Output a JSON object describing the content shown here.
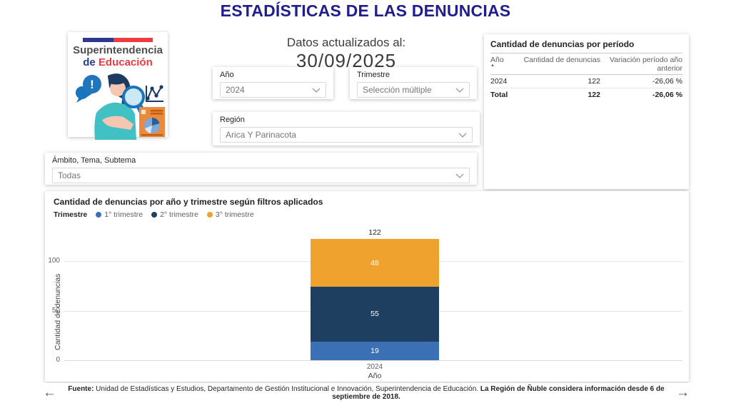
{
  "page": {
    "title": "ESTADÍSTICAS DE LAS DENUNCIAS"
  },
  "logo": {
    "line1": "Superintendencia",
    "line2_de": "de ",
    "line2_edu": "Educación"
  },
  "updated": {
    "label": "Datos actualizados al:",
    "date": "30/09/2025"
  },
  "filters": {
    "ano": {
      "label": "Año",
      "value": "2024"
    },
    "trimestre": {
      "label": "Trimestre",
      "value": "Selección múltiple"
    },
    "region": {
      "label": "Región",
      "value": "Arica Y Parinacota"
    },
    "ambito": {
      "label": "Ámbito, Tema, Subtema",
      "value": "Todas"
    }
  },
  "period_table": {
    "title": "Cantidad de denuncias por período",
    "columns": [
      "Año",
      "Cantidad de denuncias",
      "Variación período año anterior"
    ],
    "sort_indicator": "▲",
    "rows": [
      {
        "ano": "2024",
        "cantidad": "122",
        "variacion": "-26,06 %"
      }
    ],
    "total": {
      "label": "Total",
      "cantidad": "122",
      "variacion": "-26,06 %"
    }
  },
  "chart_data": {
    "type": "bar",
    "stacked": true,
    "title": "Cantidad de denuncias por año y trimestre según filtros aplicados",
    "legend_title": "Trimestre",
    "legend_position": "top",
    "grid": true,
    "categories": [
      "2024"
    ],
    "series": [
      {
        "name": "1° trimestre",
        "color": "#3b70b5",
        "values": [
          19
        ]
      },
      {
        "name": "2° trimestre",
        "color": "#1e3f60",
        "values": [
          55
        ]
      },
      {
        "name": "3° trimestre",
        "color": "#f0a22e",
        "values": [
          48
        ]
      }
    ],
    "totals": [
      122
    ],
    "xlabel": "Año",
    "ylabel": "Cantidad de denuncias",
    "ylim": [
      0,
      100
    ],
    "yticks": [
      0,
      50,
      100
    ]
  },
  "footer": {
    "fuente_label": "Fuente:",
    "text": " Unidad de Estadísticas y Estudios, Departamento de Gestión Institucional e Innovación, Superintendencia de Educación. ",
    "bold_text": "La Región de Ñuble considera información desde 6  de septiembre de 2018.",
    "prev_icon": "←",
    "next_icon": "→"
  }
}
